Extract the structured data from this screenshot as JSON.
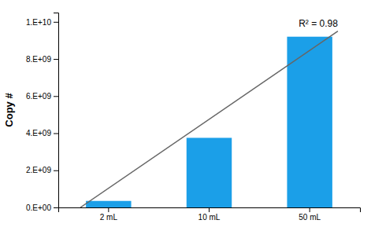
{
  "chart_data": {
    "type": "bar",
    "categories": [
      "2 mL",
      "10 mL",
      "50 mL"
    ],
    "series": [
      {
        "type": "bar",
        "color": "#1B9FE8",
        "values": [
          350000000.0,
          3750000000.0,
          9200000000.0
        ]
      },
      {
        "type": "line",
        "color": "#666666",
        "x": [
          0.72,
          3.28
        ],
        "values": [
          0,
          9500000000.0
        ]
      }
    ],
    "ylabel": "Copy #",
    "ylim": [
      0,
      10500000000.0
    ],
    "yticks": [
      {
        "value": 0,
        "label": "0.E+00"
      },
      {
        "value": 2000000000.0,
        "label": "2.E+09"
      },
      {
        "value": 4000000000.0,
        "label": "4.E+09"
      },
      {
        "value": 6000000000.0,
        "label": "6.E+09"
      },
      {
        "value": 8000000000.0,
        "label": "8.E+09"
      },
      {
        "value": 10000000000.0,
        "label": "1.E+10"
      }
    ],
    "annotation": "R² = 0.98"
  }
}
